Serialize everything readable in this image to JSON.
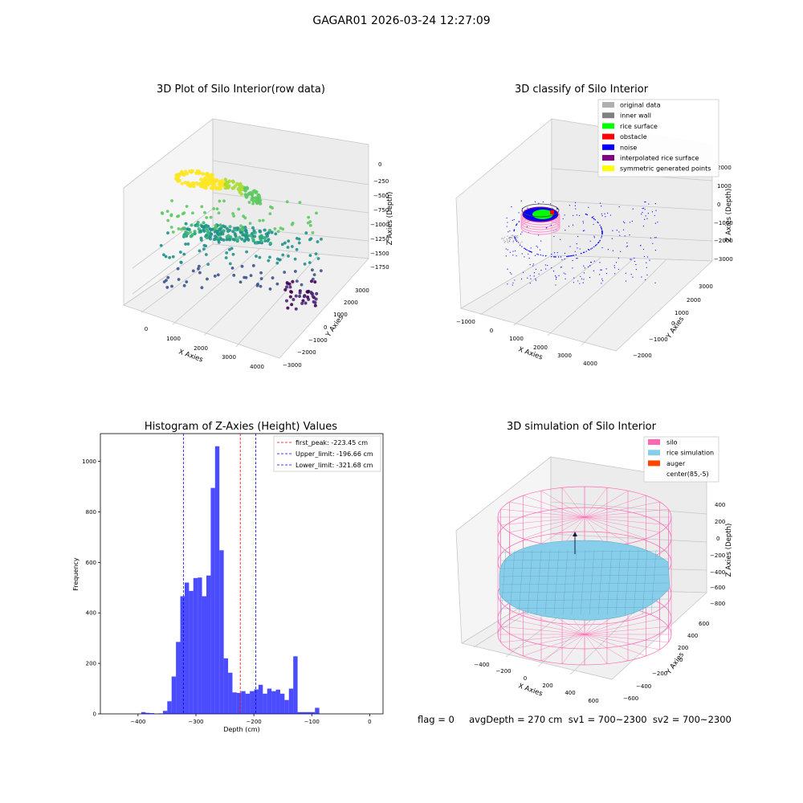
{
  "figure": {
    "suptitle": "GAGAR01 2026-03-24 12:27:09",
    "footer": "flag = 0     avgDepth = 270 cm  sv1 = 700~2300  sv2 = 700~2300"
  },
  "panels": {
    "raw": {
      "title": "3D Plot of Silo Interior(row data)",
      "xlabel": "X Axies",
      "ylabel": "Y Axies",
      "zlabel": "Z Axies (Depth)",
      "xticks": [
        "0",
        "1000",
        "2000",
        "3000",
        "4000"
      ],
      "yticks": [
        "−3000",
        "−2000",
        "−1000",
        "0",
        "1000",
        "2000",
        "3000"
      ],
      "zticks": [
        "0",
        "−250",
        "−500",
        "−750",
        "−1000",
        "−1250",
        "−1500",
        "−1750"
      ],
      "colormap": [
        "#440154",
        "#3b528b",
        "#21918c",
        "#5ec962",
        "#fde725"
      ]
    },
    "classify": {
      "title": "3D classify of Silo Interior",
      "xlabel": "X Axies",
      "ylabel": "Y Axies",
      "zlabel": "Z Axies (Depth)",
      "xticks": [
        "−1000",
        "0",
        "1000",
        "2000",
        "3000",
        "4000"
      ],
      "yticks": [
        "−2000",
        "−1000",
        "0",
        "1000",
        "2000",
        "3000"
      ],
      "zticks": [
        "2000",
        "1000",
        "0",
        "−1000",
        "−2000",
        "−3000"
      ],
      "legend": [
        {
          "label": "original data",
          "color": "#b0b0b0"
        },
        {
          "label": "inner wall",
          "color": "#808080"
        },
        {
          "label": "rice surface",
          "color": "#00ff00"
        },
        {
          "label": "obstacle",
          "color": "#ff0000"
        },
        {
          "label": "noise",
          "color": "#0000ff"
        },
        {
          "label": "interpolated rice surface",
          "color": "#800080"
        },
        {
          "label": "symmetric generated points",
          "color": "#ffff00"
        }
      ]
    },
    "simulation": {
      "title": "3D simulation of Silo Interior",
      "xlabel": "X Axies",
      "ylabel": "Y Axies",
      "zlabel": "Z Axies (Depth)",
      "xticks": [
        "−400",
        "−200",
        "0",
        "200",
        "400",
        "600"
      ],
      "yticks": [
        "−600",
        "−400",
        "−200",
        "0",
        "200",
        "400",
        "600"
      ],
      "zticks": [
        "400",
        "200",
        "0",
        "−200",
        "−400",
        "−600",
        "−800"
      ],
      "legend": [
        {
          "label": "silo",
          "color": "#ff69b4"
        },
        {
          "label": "rice simulation",
          "color": "#87ceeb"
        },
        {
          "label": "auger",
          "color": "#ff4500"
        },
        {
          "label": "center(85,-5)",
          "color": ""
        }
      ]
    }
  },
  "chart_data": [
    {
      "type": "scatter",
      "panel": "raw",
      "title": "3D Plot of Silo Interior(row data)",
      "xlabel": "X Axies",
      "ylabel": "Y Axies",
      "zlabel": "Z Axies (Depth)",
      "xlim": [
        -700,
        4500
      ],
      "ylim": [
        -3200,
        3500
      ],
      "zlim": [
        -1900,
        100
      ]
    },
    {
      "type": "scatter",
      "panel": "classify",
      "title": "3D classify of Silo Interior",
      "xlabel": "X Axies",
      "ylabel": "Y Axies",
      "zlabel": "Z Axies (Depth)",
      "xlim": [
        -1200,
        4800
      ],
      "ylim": [
        -2500,
        3300
      ],
      "zlim": [
        -3500,
        2200
      ]
    },
    {
      "type": "bar",
      "panel": "histogram",
      "title": "Histogram of Z-Axies (Height) Values",
      "xlabel": "Depth (cm)",
      "ylabel": "Frequency",
      "xlim": [
        -465,
        23
      ],
      "ylim": [
        0,
        1110
      ],
      "xticks": [
        -400,
        -300,
        -200,
        -100,
        0
      ],
      "yticks": [
        0,
        200,
        400,
        600,
        800,
        1000
      ],
      "bin_edges_start": -447,
      "bin_width": 7.5,
      "values": [
        0,
        0,
        0,
        0,
        0,
        0,
        0,
        7,
        4,
        3,
        0,
        2,
        12,
        50,
        148,
        285,
        466,
        520,
        487,
        538,
        540,
        466,
        548,
        895,
        1060,
        648,
        220,
        163,
        85,
        83,
        90,
        80,
        90,
        97,
        115,
        80,
        100,
        90,
        96,
        80,
        55,
        100,
        228,
        7,
        7,
        7,
        7,
        24
      ],
      "bar_color": "#0000ff",
      "lines": [
        {
          "label": "first_peak: -223.45 cm",
          "value": -223.45,
          "color": "#ff0000"
        },
        {
          "label": "Upper_limit: -196.66 cm",
          "value": -196.66,
          "color": "#0000ff"
        },
        {
          "label": "Lower_limit: -321.68 cm",
          "value": -321.68,
          "color": "#0000ff"
        }
      ],
      "legend_position": "top-right"
    },
    {
      "type": "scatter",
      "panel": "simulation",
      "title": "3D simulation of Silo Interior",
      "xlabel": "X Axies",
      "ylabel": "Y Axies",
      "zlabel": "Z Axies (Depth)",
      "xlim": [
        -560,
        700
      ],
      "ylim": [
        -700,
        650
      ],
      "zlim": [
        -900,
        450
      ]
    }
  ]
}
